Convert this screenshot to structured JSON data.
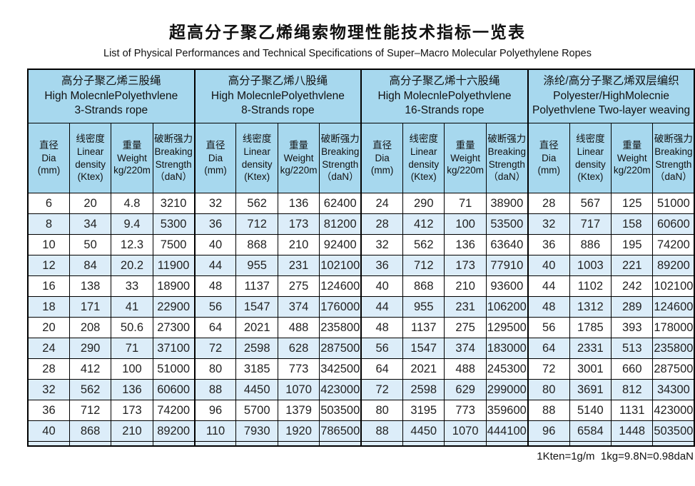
{
  "title": "超高分子聚乙烯绳索物理性能技术指标一览表",
  "subtitle": "List of Physical Performances and Technical Specifications of Super–Macro Molecular Polyethylene Ropes",
  "footnote": "1Kten=1g/m  1kg=9.8N=0.98daN",
  "colors": {
    "header_bg": "#a7d8ee",
    "row_alt_bg": "#dcedf9",
    "border": "#000000"
  },
  "table": {
    "groups": [
      {
        "key": "3-strands",
        "label": "高分子聚乙烯三股绳\nHigh MolecnlePolyethvlene\n3-Strands rope"
      },
      {
        "key": "8-strands",
        "label": "高分子聚乙烯八股绳\nHigh MolecnlePolyethvlene\n8-Strands rope"
      },
      {
        "key": "16-strands",
        "label": "高分子聚乙烯十六股绳\nHigh MolecnlePolyethvlene\n16-Strands rope"
      },
      {
        "key": "two-layer",
        "label": "涤纶/高分子聚乙烯双层编织\nPolyester/HighMolecnie\nPolyethvlene Two-layer weaving"
      }
    ],
    "columns": [
      {
        "key": "dia",
        "label": "直径\nDia\n(mm)"
      },
      {
        "key": "linear-density",
        "label": "线密度\nLinear\ndensity\n(Ktex)"
      },
      {
        "key": "weight",
        "label": "重量\nWeight\nkg/220m"
      },
      {
        "key": "breaking-strength",
        "label": "破断强力\nBreaking\nStrength\n（daN）"
      }
    ],
    "rows": [
      [
        "6",
        "20",
        "4.8",
        "3210",
        "32",
        "562",
        "136",
        "62400",
        "24",
        "290",
        "71",
        "38900",
        "28",
        "567",
        "125",
        "51000"
      ],
      [
        "8",
        "34",
        "9.4",
        "5300",
        "36",
        "712",
        "173",
        "81200",
        "28",
        "412",
        "100",
        "53500",
        "32",
        "717",
        "158",
        "60600"
      ],
      [
        "10",
        "50",
        "12.3",
        "7500",
        "40",
        "868",
        "210",
        "92400",
        "32",
        "562",
        "136",
        "63640",
        "36",
        "886",
        "195",
        "74200"
      ],
      [
        "12",
        "84",
        "20.2",
        "11900",
        "44",
        "955",
        "231",
        "102100",
        "36",
        "712",
        "173",
        "77910",
        "40",
        "1003",
        "221",
        "89200"
      ],
      [
        "16",
        "138",
        "33",
        "18900",
        "48",
        "1137",
        "275",
        "124600",
        "40",
        "868",
        "210",
        "93600",
        "44",
        "1102",
        "242",
        "102100"
      ],
      [
        "18",
        "171",
        "41",
        "22900",
        "56",
        "1547",
        "374",
        "176000",
        "44",
        "955",
        "231",
        "106200",
        "48",
        "1312",
        "289",
        "124600"
      ],
      [
        "20",
        "208",
        "50.6",
        "27300",
        "64",
        "2021",
        "488",
        "235800",
        "48",
        "1137",
        "275",
        "129500",
        "56",
        "1785",
        "393",
        "178000"
      ],
      [
        "24",
        "290",
        "71",
        "37100",
        "72",
        "2598",
        "628",
        "287500",
        "56",
        "1547",
        "374",
        "183000",
        "64",
        "2331",
        "513",
        "235800"
      ],
      [
        "28",
        "412",
        "100",
        "51000",
        "80",
        "3185",
        "773",
        "342500",
        "64",
        "2021",
        "488",
        "245300",
        "72",
        "3001",
        "660",
        "287500"
      ],
      [
        "32",
        "562",
        "136",
        "60600",
        "88",
        "4450",
        "1070",
        "423000",
        "72",
        "2598",
        "629",
        "299000",
        "80",
        "3691",
        "812",
        "34300"
      ],
      [
        "36",
        "712",
        "173",
        "74200",
        "96",
        "5700",
        "1379",
        "503500",
        "80",
        "3195",
        "773",
        "359600",
        "88",
        "5140",
        "1131",
        "423000"
      ],
      [
        "40",
        "868",
        "210",
        "89200",
        "110",
        "7930",
        "1920",
        "786500",
        "88",
        "4450",
        "1070",
        "444100",
        "96",
        "6584",
        "1448",
        "503500"
      ]
    ]
  }
}
